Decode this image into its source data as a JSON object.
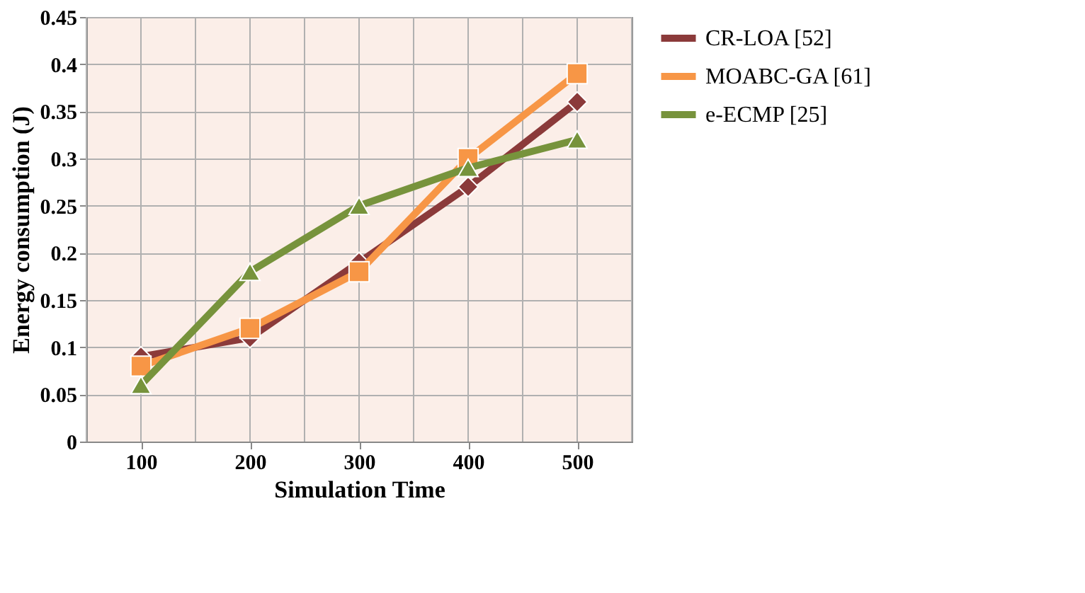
{
  "chart_data": {
    "type": "line",
    "xlabel": "Simulation Time",
    "ylabel": "Energy consumption (J)",
    "categories": [
      "100",
      "200",
      "300",
      "400",
      "500"
    ],
    "series": [
      {
        "name": "CR-LOA [52]",
        "color": "#8b3a3a",
        "marker": "diamond",
        "values": [
          0.09,
          0.11,
          0.19,
          0.27,
          0.36
        ]
      },
      {
        "name": "MOABC-GA [61]",
        "color": "#f79646",
        "marker": "square",
        "values": [
          0.08,
          0.12,
          0.18,
          0.3,
          0.39
        ]
      },
      {
        "name": "e-ECMP [25]",
        "color": "#77933c",
        "marker": "triangle",
        "values": [
          0.06,
          0.18,
          0.25,
          0.29,
          0.32
        ]
      }
    ],
    "ylim": [
      0,
      0.45
    ],
    "yticks": [
      0,
      0.05,
      0.1,
      0.15,
      0.2,
      0.25,
      0.3,
      0.35,
      0.4,
      0.45
    ],
    "grid": true,
    "legend": "right",
    "line_style": "solid"
  }
}
